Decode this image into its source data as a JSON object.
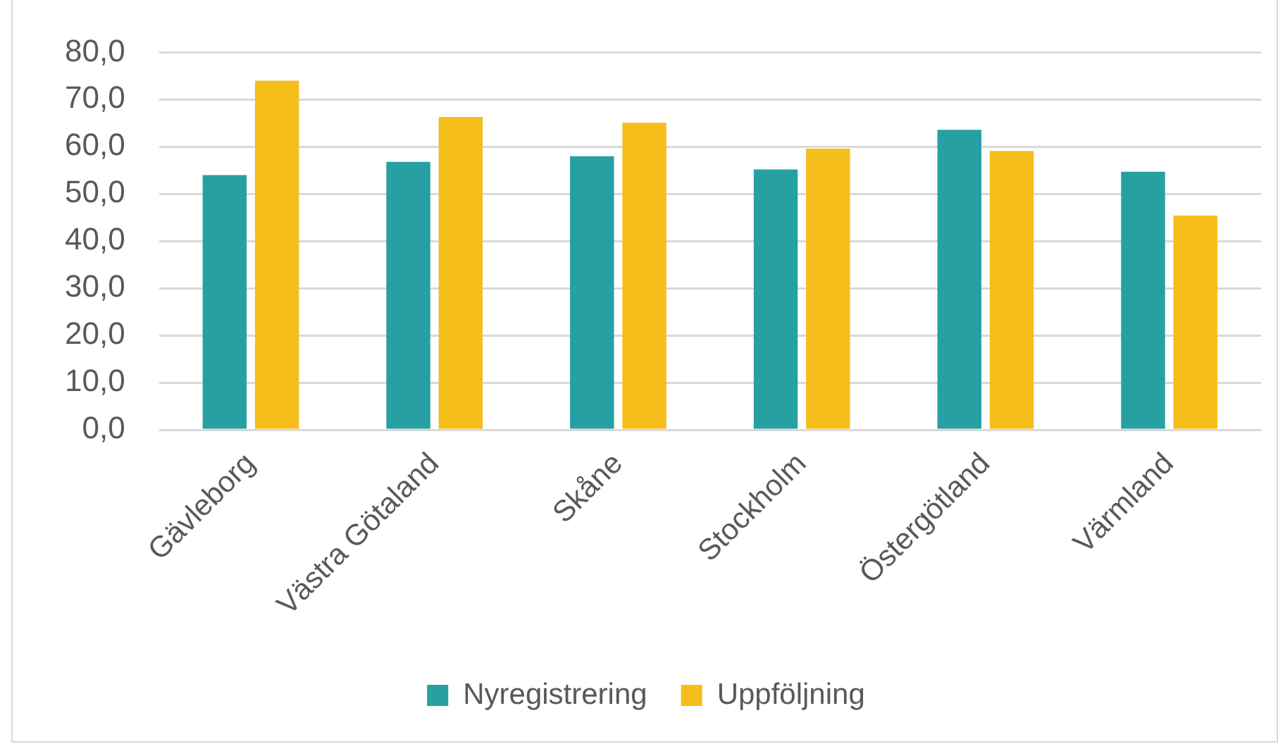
{
  "chart_data": {
    "type": "bar",
    "categories": [
      "Gävleborg",
      "Västra Götaland",
      "Skåne",
      "Stockholm",
      "Östergötland",
      "Värmland"
    ],
    "series": [
      {
        "name": "Nyregistrering",
        "color": "#26a0a2",
        "values": [
          54.0,
          56.8,
          58.0,
          55.2,
          63.6,
          54.7
        ]
      },
      {
        "name": "Uppföljning",
        "color": "#f6be1a",
        "values": [
          74.0,
          66.3,
          65.1,
          59.6,
          59.1,
          45.4
        ]
      }
    ],
    "ylim": [
      0,
      80
    ],
    "yticks": [
      {
        "value": 0,
        "label": "0,0"
      },
      {
        "value": 10,
        "label": "10,0"
      },
      {
        "value": 20,
        "label": "20,0"
      },
      {
        "value": 30,
        "label": "30,0"
      },
      {
        "value": 40,
        "label": "40,0"
      },
      {
        "value": 50,
        "label": "50,0"
      },
      {
        "value": 60,
        "label": "60,0"
      },
      {
        "value": 70,
        "label": "70,0"
      },
      {
        "value": 80,
        "label": "80,0"
      }
    ],
    "grid": "y",
    "legend": "bottom"
  }
}
